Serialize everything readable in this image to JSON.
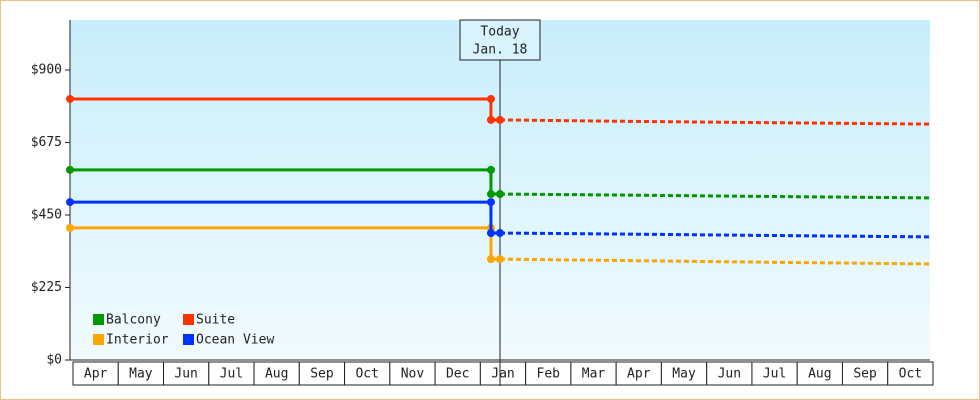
{
  "chart_data": {
    "type": "line",
    "categories": [
      "Apr",
      "May",
      "Jun",
      "Jul",
      "Aug",
      "Sep",
      "Oct",
      "Nov",
      "Dec",
      "Jan",
      "Feb",
      "Mar",
      "Apr",
      "May",
      "Jun",
      "Jul",
      "Aug",
      "Sep",
      "Oct"
    ],
    "xlim": [
      0,
      19
    ],
    "ylim": [
      0,
      1055
    ],
    "yticks": [
      {
        "value": 0,
        "label": "$0"
      },
      {
        "value": 225,
        "label": "$225"
      },
      {
        "value": 450,
        "label": "$450"
      },
      {
        "value": 675,
        "label": "$675"
      },
      {
        "value": 900,
        "label": "$900"
      }
    ],
    "annotation": {
      "x": 9.5,
      "lines": [
        "Today",
        "Jan. 18"
      ]
    },
    "dashed_from": 3,
    "series": [
      {
        "name": "Balcony",
        "color": "#009900",
        "x": [
          0,
          9.3,
          9.3,
          9.5,
          12,
          15,
          19
        ],
        "values": [
          590,
          590,
          515,
          515,
          512,
          508,
          503
        ]
      },
      {
        "name": "Suite",
        "color": "#ff3300",
        "x": [
          0,
          9.3,
          9.3,
          9.5,
          12,
          15,
          19
        ],
        "values": [
          810,
          810,
          745,
          745,
          741,
          737,
          732
        ]
      },
      {
        "name": "Interior",
        "color": "#ffa500",
        "x": [
          0,
          9.3,
          9.3,
          9.5,
          12,
          15,
          19
        ],
        "values": [
          410,
          410,
          313,
          313,
          309,
          304,
          298
        ]
      },
      {
        "name": "Ocean View",
        "color": "#0033ff",
        "x": [
          0,
          9.3,
          9.3,
          9.5,
          12,
          15,
          19
        ],
        "values": [
          490,
          490,
          394,
          394,
          391,
          387,
          382
        ]
      }
    ]
  }
}
